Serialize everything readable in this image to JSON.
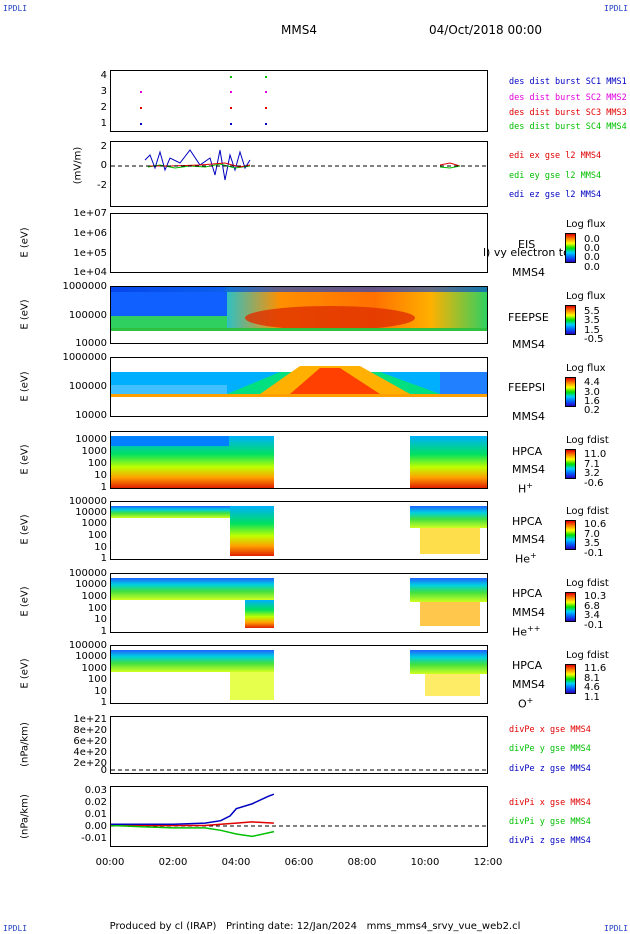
{
  "corners": {
    "tl": "IPDLI",
    "tr": "IPDLI",
    "bl": "IPDLI",
    "br": "IPDLI"
  },
  "header": {
    "spacecraft": "MMS4",
    "date": "04/Oct/2018 00:00"
  },
  "footer": {
    "produced_by": "Produced by cl (IRAP)",
    "printing_date": "Printing date: 12/Jan/2024",
    "file": "mms_mms4_srvy_vue_web2.cl"
  },
  "colors": {
    "red": "#e00000",
    "green": "#00c000",
    "blue": "#0000c0",
    "magenta": "#e000e0"
  },
  "chart_data": {
    "type": "multi-panel",
    "x_axis": {
      "range": [
        "00:00",
        "12:00"
      ],
      "ticks": [
        "00:00",
        "02:00",
        "04:00",
        "06:00",
        "08:00",
        "10:00",
        "12:00"
      ]
    },
    "panels": [
      {
        "id": "burst",
        "type": "scatter",
        "yticks": [
          "4",
          "3",
          "2",
          "1"
        ],
        "legend": [
          {
            "text": "des dist burst SC1 MMS1",
            "color": "#0000c0"
          },
          {
            "text": "des dist burst SC2 MMS2",
            "color": "#e000e0"
          },
          {
            "text": "des dist burst SC3 MMS3",
            "color": "#e00000"
          },
          {
            "text": "des dist burst SC4 MMS4",
            "color": "#00c000"
          }
        ]
      },
      {
        "id": "edi",
        "type": "line",
        "ylabel": "(mV/m)",
        "yticks": [
          "2",
          "0",
          "-2"
        ],
        "ylim": [
          -3,
          3
        ],
        "legend": [
          {
            "text": "edi ex gse l2 MMS4",
            "color": "#e00000"
          },
          {
            "text": "edi ey gse l2 MMS4",
            "color": "#00c000"
          },
          {
            "text": "edi ez gse l2 MMS4",
            "color": "#0000c0"
          }
        ]
      },
      {
        "id": "eis",
        "type": "heatmap",
        "ylabel": "E (eV)",
        "yticks": [
          "1e+07",
          "1e+06",
          "1e+05",
          "1e+04"
        ],
        "name": "EIS",
        "name2": "MMS4",
        "overlay": "l) vy electron to",
        "cbar_title": "Log flux",
        "cbar_values": [
          "0.0",
          "0.0",
          "0.0",
          "0.0"
        ]
      },
      {
        "id": "feepse",
        "type": "heatmap",
        "ylabel": "E (eV)",
        "yticks": [
          "1000000",
          "100000",
          "10000"
        ],
        "name": "FEEPSE",
        "name2": "MMS4",
        "cbar_title": "Log flux",
        "cbar_values": [
          "5.5",
          "3.5",
          "1.5",
          "-0.5"
        ]
      },
      {
        "id": "feepsi",
        "type": "heatmap",
        "ylabel": "E (eV)",
        "yticks": [
          "1000000",
          "100000",
          "10000"
        ],
        "name": "FEEPSI",
        "name2": "MMS4",
        "cbar_title": "Log flux",
        "cbar_values": [
          "4.4",
          "3.0",
          "1.6",
          "0.2"
        ]
      },
      {
        "id": "hpca_h",
        "type": "heatmap",
        "ylabel": "E (eV)",
        "yticks": [
          "10000",
          "1000",
          "100",
          "10",
          "1"
        ],
        "name": "HPCA",
        "name2": "MMS4",
        "species": "H",
        "species_sup": "+",
        "cbar_title": "Log fdist",
        "cbar_values": [
          "11.0",
          "7.1",
          "3.2",
          "-0.6"
        ]
      },
      {
        "id": "hpca_he1",
        "type": "heatmap",
        "ylabel": "E (eV)",
        "yticks": [
          "100000",
          "10000",
          "1000",
          "100",
          "10",
          "1"
        ],
        "name": "HPCA",
        "name2": "MMS4",
        "species": "He",
        "species_sup": "+",
        "cbar_title": "Log fdist",
        "cbar_values": [
          "10.6",
          "7.0",
          "3.5",
          "-0.1"
        ]
      },
      {
        "id": "hpca_he2",
        "type": "heatmap",
        "ylabel": "E (eV)",
        "yticks": [
          "100000",
          "10000",
          "1000",
          "100",
          "10",
          "1"
        ],
        "name": "HPCA",
        "name2": "MMS4",
        "species": "He",
        "species_sup": "++",
        "cbar_title": "Log fdist",
        "cbar_values": [
          "10.3",
          "6.8",
          "3.4",
          "-0.1"
        ]
      },
      {
        "id": "hpca_o",
        "type": "heatmap",
        "ylabel": "E (eV)",
        "yticks": [
          "100000",
          "10000",
          "1000",
          "100",
          "10",
          "1"
        ],
        "name": "HPCA",
        "name2": "MMS4",
        "species": "O",
        "species_sup": "+",
        "cbar_title": "Log fdist",
        "cbar_values": [
          "11.6",
          "8.1",
          "4.6",
          "1.1"
        ]
      },
      {
        "id": "divpe",
        "type": "line",
        "ylabel": "(nPa/km)",
        "yticks": [
          "1e+21",
          "8e+20",
          "6e+20",
          "4e+20",
          "2e+20",
          "0"
        ],
        "legend": [
          {
            "text": "divPe x gse MMS4",
            "color": "#e00000"
          },
          {
            "text": "divPe y gse MMS4",
            "color": "#00c000"
          },
          {
            "text": "divPe z gse MMS4",
            "color": "#0000c0"
          }
        ]
      },
      {
        "id": "divpi",
        "type": "line",
        "ylabel": "(nPa/km)",
        "yticks": [
          "0.03",
          "0.02",
          "0.01",
          "0.00",
          "-0.01"
        ],
        "ylim": [
          -0.017,
          0.032
        ],
        "legend": [
          {
            "text": "divPi x gse MMS4",
            "color": "#e00000"
          },
          {
            "text": "divPi y gse MMS4",
            "color": "#00c000"
          },
          {
            "text": "divPi z gse MMS4",
            "color": "#0000c0"
          }
        ],
        "series": [
          {
            "name": "divPi x gse MMS4",
            "x": [
              0,
              1,
              2,
              3,
              3.5,
              4,
              4.5,
              5.2
            ],
            "y": [
              0.001,
              0.0,
              0.0,
              0.0,
              0.001,
              0.002,
              0.003,
              0.002
            ]
          },
          {
            "name": "divPi y gse MMS4",
            "x": [
              0,
              1,
              2,
              3,
              3.5,
              4,
              4.5,
              5.2
            ],
            "y": [
              0.0,
              -0.001,
              -0.002,
              -0.002,
              -0.004,
              -0.007,
              -0.009,
              -0.005
            ]
          },
          {
            "name": "divPi z gse MMS4",
            "x": [
              0,
              1,
              2,
              3,
              3.5,
              3.8,
              4,
              4.5,
              5.0,
              5.2
            ],
            "y": [
              0.001,
              0.001,
              0.001,
              0.002,
              0.004,
              0.008,
              0.014,
              0.018,
              0.024,
              0.026
            ]
          }
        ]
      }
    ]
  }
}
